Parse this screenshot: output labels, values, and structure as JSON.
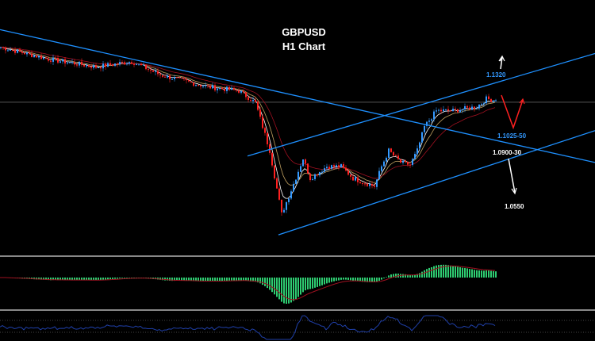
{
  "chart_data": {
    "type": "candlestick",
    "title": "GBPUSD",
    "subtitle": "H1 Chart",
    "ylim": [
      1.027,
      1.176
    ],
    "bars": 250,
    "price_anchors": [
      [
        0,
        1.1483
      ],
      [
        20,
        1.1413
      ],
      [
        40,
        1.1367
      ],
      [
        55,
        1.1399
      ],
      [
        67,
        1.132
      ],
      [
        87,
        1.125
      ],
      [
        100,
        1.1227
      ],
      [
        107,
        1.1157
      ],
      [
        113,
        1.0876
      ],
      [
        118,
        1.0503
      ],
      [
        122,
        1.0643
      ],
      [
        127,
        1.083
      ],
      [
        130,
        1.0713
      ],
      [
        137,
        1.0783
      ],
      [
        143,
        1.0783
      ],
      [
        148,
        1.0713
      ],
      [
        157,
        1.0666
      ],
      [
        160,
        1.0783
      ],
      [
        163,
        1.0876
      ],
      [
        168,
        1.0806
      ],
      [
        172,
        1.0792
      ],
      [
        175,
        1.0876
      ],
      [
        178,
        1.1016
      ],
      [
        183,
        1.111
      ],
      [
        190,
        1.111
      ],
      [
        200,
        1.1133
      ],
      [
        204,
        1.118
      ],
      [
        208,
        1.1171
      ]
    ],
    "trendlines": [
      {
        "from": [
          0,
          1.1586
        ],
        "to": [
          250,
          1.0806
        ]
      },
      {
        "from": [
          104,
          1.0844
        ],
        "to": [
          250,
          1.1446
        ]
      },
      {
        "from": [
          117,
          1.0381
        ],
        "to": [
          250,
          1.0993
        ]
      }
    ],
    "horizontal_line": 1.116,
    "annotations": [
      {
        "text": "1.1320",
        "price": 1.132,
        "color": "#3399ff"
      },
      {
        "text": "1.1025-50",
        "price": 1.1025,
        "color": "#3399ff"
      },
      {
        "text": "1.0900-30",
        "price": 1.09,
        "color": "#ffffff"
      },
      {
        "text": "1.0550",
        "price": 1.055,
        "color": "#ffffff"
      }
    ],
    "colors": {
      "bull": "#3399ff",
      "bear": "#ff2020",
      "trend": "#1e90ff",
      "macd": "#2ecc71",
      "signal": "#a01020",
      "rsi": "#1f3fa8"
    },
    "indicators": [
      "MACD histogram with signal",
      "oscillator with dotted levels"
    ]
  }
}
